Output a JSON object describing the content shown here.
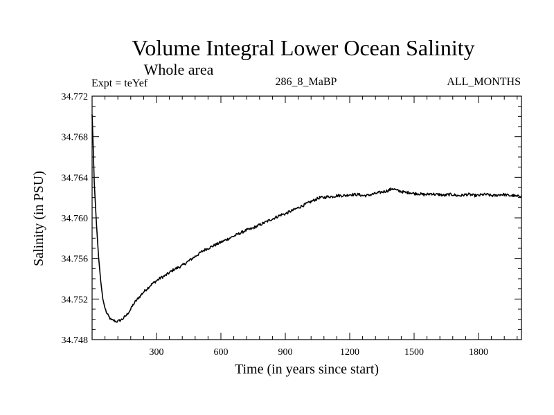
{
  "chart_data": {
    "type": "line",
    "title": "Volume Integral Lower Ocean Salinity",
    "subtitle": "Whole area",
    "header_left": "Expt = teYef",
    "header_center": "286_8_MaBP",
    "header_right": "ALL_MONTHS",
    "xlabel": "Time (in years since start)",
    "ylabel": "Salinity (in PSU)",
    "xlim": [
      0,
      2000
    ],
    "ylim": [
      34.748,
      34.772
    ],
    "x_ticks": [
      300,
      600,
      900,
      1200,
      1500,
      1800
    ],
    "x_tick_labels": [
      "300",
      "600",
      "900",
      "1200",
      "1500",
      "1800"
    ],
    "y_ticks": [
      34.748,
      34.752,
      34.756,
      34.76,
      34.764,
      34.768,
      34.772
    ],
    "y_tick_labels": [
      "34.748",
      "34.752",
      "34.756",
      "34.760",
      "34.764",
      "34.768",
      "34.772"
    ],
    "grid": false,
    "series": [
      {
        "name": "Salinity",
        "color": "#000000",
        "x": [
          0,
          5,
          10,
          20,
          30,
          40,
          50,
          60,
          70,
          80,
          90,
          100,
          110,
          120,
          130,
          140,
          150,
          160,
          170,
          180,
          190,
          200,
          220,
          240,
          260,
          280,
          300,
          320,
          340,
          360,
          380,
          400,
          420,
          440,
          460,
          480,
          500,
          520,
          540,
          560,
          580,
          600,
          620,
          640,
          660,
          680,
          700,
          720,
          740,
          760,
          780,
          800,
          820,
          840,
          860,
          880,
          900,
          920,
          940,
          960,
          980,
          1000,
          1020,
          1040,
          1060,
          1080,
          1100,
          1120,
          1140,
          1160,
          1180,
          1200,
          1220,
          1240,
          1260,
          1280,
          1300,
          1320,
          1340,
          1360,
          1380,
          1400,
          1420,
          1440,
          1460,
          1480,
          1500,
          1520,
          1540,
          1560,
          1580,
          1600,
          1620,
          1640,
          1660,
          1680,
          1700,
          1720,
          1740,
          1760,
          1780,
          1800,
          1820,
          1840,
          1860,
          1880,
          1900,
          1920,
          1940,
          1960,
          1980,
          2000
        ],
        "values": [
          34.7702,
          34.7671,
          34.7635,
          34.7595,
          34.7562,
          34.7538,
          34.752,
          34.7511,
          34.7505,
          34.7502,
          34.7499,
          34.7499,
          34.7498,
          34.7498,
          34.7499,
          34.75,
          34.7502,
          34.7504,
          34.7507,
          34.751,
          34.7514,
          34.7517,
          34.7522,
          34.7527,
          34.7531,
          34.7535,
          34.7538,
          34.7541,
          34.7543,
          34.7546,
          34.7549,
          34.7551,
          34.7553,
          34.7556,
          34.7559,
          34.7562,
          34.7565,
          34.7568,
          34.757,
          34.7572,
          34.7574,
          34.7576,
          34.7578,
          34.758,
          34.7582,
          34.7584,
          34.7586,
          34.7588,
          34.7589,
          34.7591,
          34.7593,
          34.7595,
          34.7597,
          34.7599,
          34.7601,
          34.7603,
          34.7604,
          34.7606,
          34.7608,
          34.761,
          34.7612,
          34.7614,
          34.7616,
          34.7618,
          34.762,
          34.762,
          34.7621,
          34.7621,
          34.7622,
          34.7622,
          34.7622,
          34.7623,
          34.7623,
          34.7623,
          34.7622,
          34.7622,
          34.7623,
          34.7624,
          34.7625,
          34.7626,
          34.7627,
          34.7629,
          34.7627,
          34.7626,
          34.7625,
          34.7625,
          34.7624,
          34.7624,
          34.7623,
          34.7623,
          34.7624,
          34.7623,
          34.7623,
          34.7622,
          34.7623,
          34.7623,
          34.7622,
          34.7622,
          34.7623,
          34.7623,
          34.7622,
          34.7622,
          34.7623,
          34.7623,
          34.7622,
          34.7622,
          34.7623,
          34.7623,
          34.7622,
          34.7622,
          34.7621,
          34.7622
        ]
      }
    ]
  }
}
